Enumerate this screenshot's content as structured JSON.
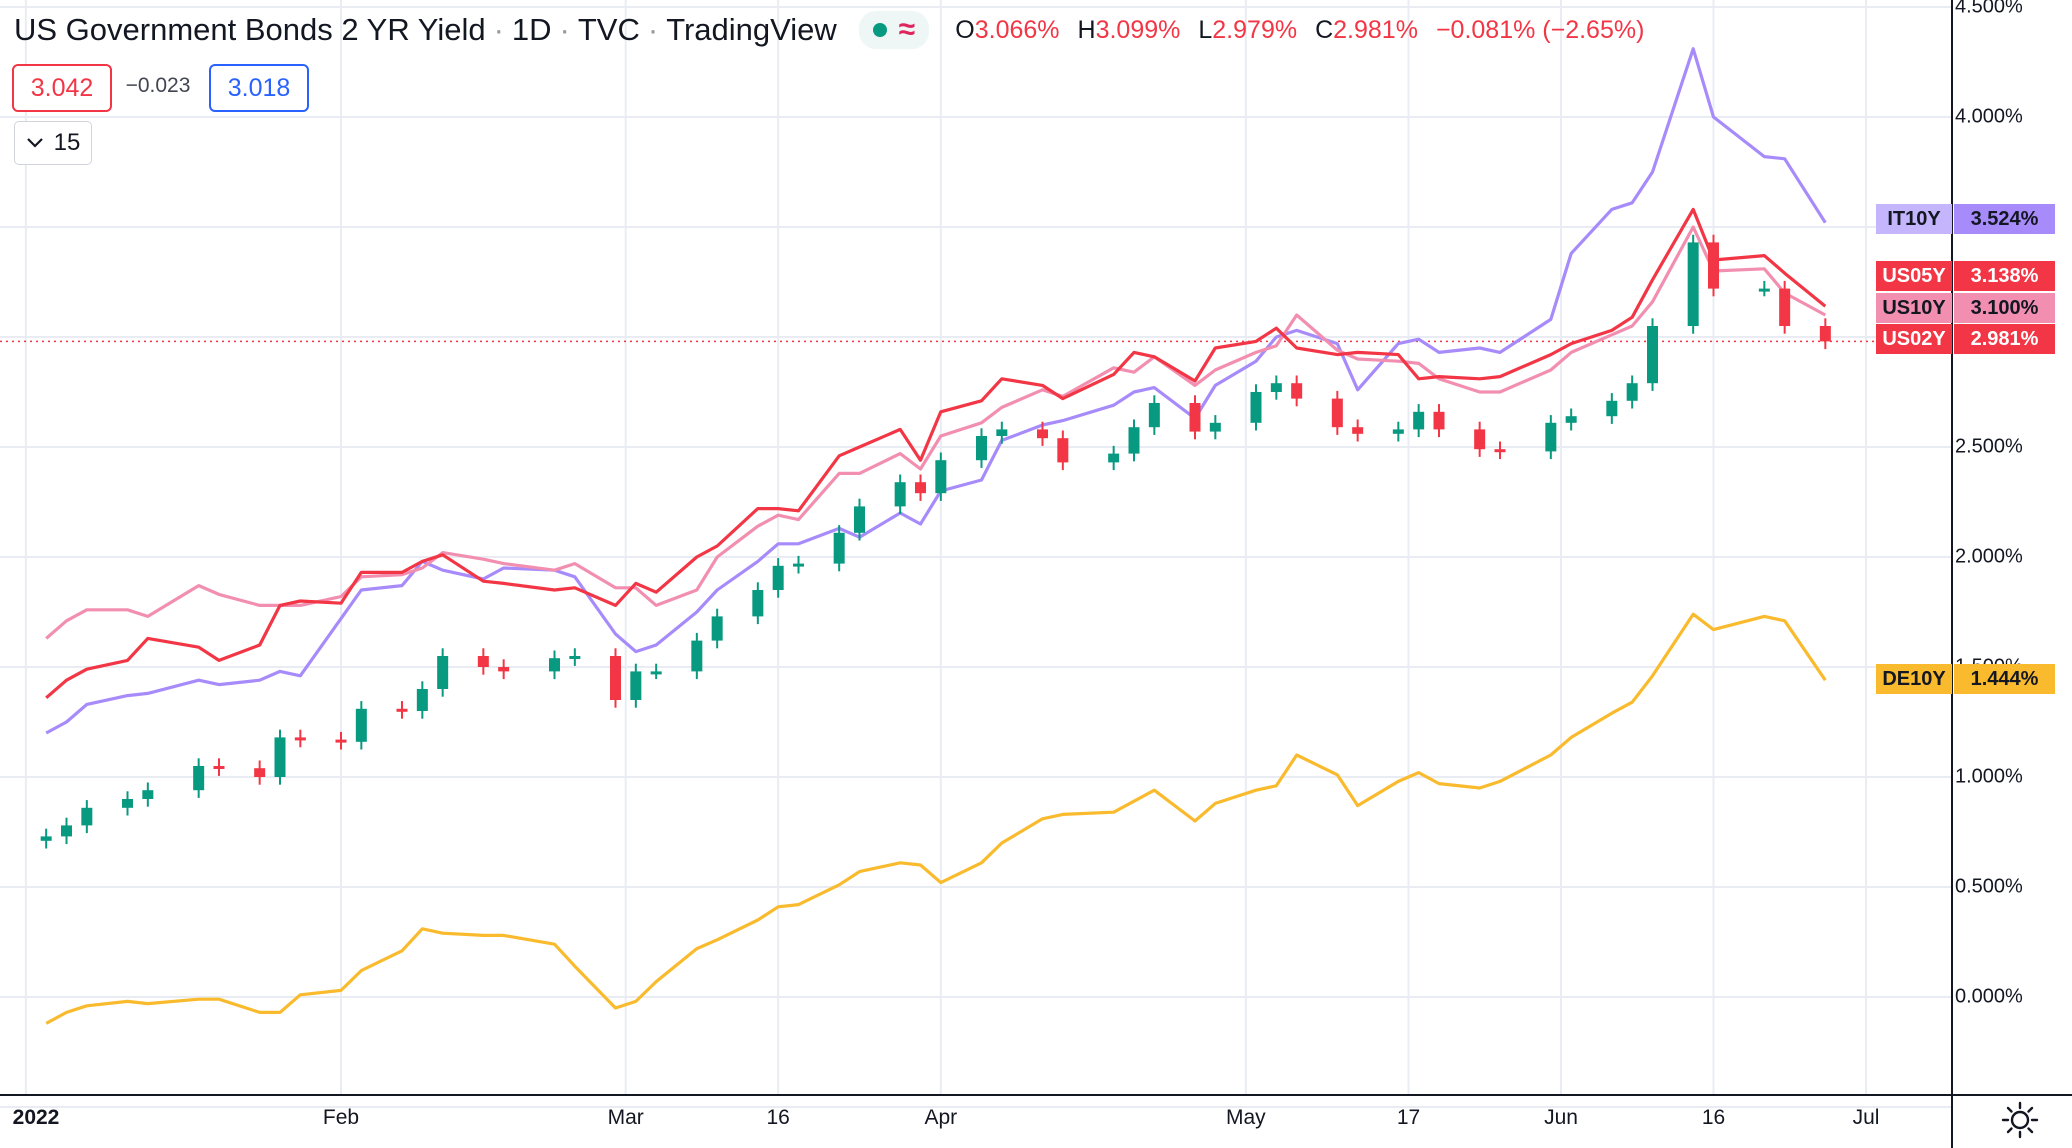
{
  "header": {
    "title": "US Government Bonds 2 YR Yield",
    "interval": "1D",
    "exchange": "TVC",
    "source": "TradingView",
    "open_label": "O",
    "open": "3.066%",
    "high_label": "H",
    "high": "3.099%",
    "low_label": "L",
    "low": "2.979%",
    "close_label": "C",
    "close": "2.981%",
    "change": "−0.081% (−2.65%)"
  },
  "quote": {
    "bid": "3.042",
    "spread": "−0.023",
    "ask": "3.018"
  },
  "volume_button": {
    "label": "15"
  },
  "colors": {
    "up": "#089981",
    "down": "#f23645",
    "US05Y": "#f23645",
    "US10Y": "#f28fb1",
    "IT10Y": "#a78bfa",
    "DE10Y": "#f9bb2d",
    "grid": "#e9edf3"
  },
  "axis": {
    "y_ticks": [
      "4.500%",
      "4.000%",
      "2.500%",
      "2.000%",
      "1.500%",
      "1.000%",
      "0.500%",
      "0.000%"
    ],
    "x_ticks": [
      "2022",
      "Feb",
      "Mar",
      "16",
      "Apr",
      "May",
      "17",
      "Jun",
      "16",
      "Jul"
    ]
  },
  "labels": [
    {
      "symbol": "IT10Y",
      "value": "3.524%"
    },
    {
      "symbol": "US05Y",
      "value": "3.138%"
    },
    {
      "symbol": "US10Y",
      "value": "3.100%"
    },
    {
      "symbol": "US02Y",
      "value": "2.981%"
    },
    {
      "symbol": "DE10Y",
      "value": "1.444%"
    }
  ],
  "chart_data": {
    "type": "line",
    "title": "US Government Bonds 2 YR Yield",
    "x": [
      "2022-01-03",
      "2022-01-05",
      "2022-01-07",
      "2022-01-11",
      "2022-01-13",
      "2022-01-18",
      "2022-01-20",
      "2022-01-24",
      "2022-01-26",
      "2022-01-28",
      "2022-02-01",
      "2022-02-03",
      "2022-02-07",
      "2022-02-09",
      "2022-02-11",
      "2022-02-15",
      "2022-02-17",
      "2022-02-22",
      "2022-02-24",
      "2022-02-28",
      "2022-03-02",
      "2022-03-04",
      "2022-03-08",
      "2022-03-10",
      "2022-03-14",
      "2022-03-16",
      "2022-03-18",
      "2022-03-22",
      "2022-03-24",
      "2022-03-28",
      "2022-03-30",
      "2022-04-01",
      "2022-04-05",
      "2022-04-07",
      "2022-04-11",
      "2022-04-13",
      "2022-04-18",
      "2022-04-20",
      "2022-04-22",
      "2022-04-26",
      "2022-04-28",
      "2022-05-02",
      "2022-05-04",
      "2022-05-06",
      "2022-05-10",
      "2022-05-12",
      "2022-05-16",
      "2022-05-18",
      "2022-05-20",
      "2022-05-24",
      "2022-05-26",
      "2022-05-31",
      "2022-06-02",
      "2022-06-06",
      "2022-06-08",
      "2022-06-10",
      "2022-06-14",
      "2022-06-16",
      "2022-06-21",
      "2022-06-23",
      "2022-06-27"
    ],
    "series": [
      {
        "name": "US02Y",
        "type": "candlestick",
        "values": [
          0.73,
          0.78,
          0.86,
          0.9,
          0.94,
          1.05,
          1.04,
          1.0,
          1.18,
          1.17,
          1.16,
          1.31,
          1.3,
          1.4,
          1.55,
          1.5,
          1.48,
          1.54,
          1.55,
          1.35,
          1.48,
          1.48,
          1.62,
          1.73,
          1.85,
          1.96,
          1.97,
          2.11,
          2.23,
          2.34,
          2.29,
          2.44,
          2.55,
          2.58,
          2.54,
          2.43,
          2.47,
          2.59,
          2.7,
          2.57,
          2.61,
          2.75,
          2.79,
          2.72,
          2.59,
          2.56,
          2.58,
          2.66,
          2.58,
          2.49,
          2.48,
          2.61,
          2.64,
          2.71,
          2.79,
          3.05,
          3.43,
          3.22,
          3.22,
          3.05,
          2.98
        ]
      },
      {
        "name": "US05Y",
        "values": [
          1.36,
          1.44,
          1.49,
          1.53,
          1.63,
          1.59,
          1.53,
          1.6,
          1.78,
          1.8,
          1.79,
          1.93,
          1.93,
          1.98,
          2.01,
          1.89,
          1.88,
          1.85,
          1.86,
          1.78,
          1.88,
          1.84,
          2.0,
          2.05,
          2.22,
          2.22,
          2.21,
          2.46,
          2.5,
          2.58,
          2.44,
          2.66,
          2.71,
          2.81,
          2.78,
          2.72,
          2.83,
          2.93,
          2.91,
          2.8,
          2.95,
          2.98,
          3.04,
          2.95,
          2.92,
          2.93,
          2.92,
          2.81,
          2.82,
          2.81,
          2.82,
          2.92,
          2.97,
          3.03,
          3.09,
          3.26,
          3.58,
          3.35,
          3.37,
          3.29,
          3.14
        ]
      },
      {
        "name": "US10Y",
        "values": [
          1.63,
          1.71,
          1.76,
          1.76,
          1.73,
          1.87,
          1.83,
          1.78,
          1.78,
          1.78,
          1.82,
          1.91,
          1.92,
          1.95,
          2.02,
          1.99,
          1.97,
          1.94,
          1.97,
          1.86,
          1.86,
          1.78,
          1.85,
          2.0,
          2.14,
          2.19,
          2.17,
          2.38,
          2.38,
          2.47,
          2.4,
          2.55,
          2.61,
          2.68,
          2.76,
          2.73,
          2.86,
          2.84,
          2.91,
          2.78,
          2.85,
          2.93,
          2.96,
          3.1,
          2.94,
          2.9,
          2.89,
          2.88,
          2.81,
          2.75,
          2.75,
          2.85,
          2.93,
          3.01,
          3.05,
          3.16,
          3.5,
          3.3,
          3.31,
          3.2,
          3.1
        ]
      },
      {
        "name": "IT10Y",
        "values": [
          1.2,
          1.25,
          1.33,
          1.37,
          1.38,
          1.44,
          1.42,
          1.44,
          1.48,
          1.46,
          1.72,
          1.85,
          1.87,
          1.98,
          1.94,
          1.9,
          1.95,
          1.94,
          1.91,
          1.65,
          1.57,
          1.6,
          1.75,
          1.85,
          1.98,
          2.06,
          2.06,
          2.13,
          2.09,
          2.2,
          2.15,
          2.3,
          2.35,
          2.53,
          2.6,
          2.62,
          2.69,
          2.75,
          2.77,
          2.63,
          2.78,
          2.89,
          3.0,
          3.03,
          2.97,
          2.76,
          2.97,
          2.99,
          2.93,
          2.95,
          2.93,
          3.08,
          3.38,
          3.58,
          3.61,
          3.75,
          4.31,
          4.0,
          3.82,
          3.81,
          3.52
        ]
      },
      {
        "name": "DE10Y",
        "values": [
          -0.12,
          -0.07,
          -0.04,
          -0.02,
          -0.03,
          -0.01,
          -0.01,
          -0.07,
          -0.07,
          0.01,
          0.03,
          0.12,
          0.21,
          0.31,
          0.29,
          0.28,
          0.28,
          0.24,
          0.14,
          -0.05,
          -0.02,
          0.07,
          0.22,
          0.26,
          0.35,
          0.41,
          0.42,
          0.51,
          0.57,
          0.61,
          0.6,
          0.52,
          0.61,
          0.7,
          0.81,
          0.83,
          0.84,
          0.89,
          0.94,
          0.8,
          0.88,
          0.94,
          0.96,
          1.1,
          1.01,
          0.87,
          0.98,
          1.02,
          0.97,
          0.95,
          0.98,
          1.1,
          1.18,
          1.29,
          1.34,
          1.46,
          1.74,
          1.67,
          1.73,
          1.71,
          1.44
        ]
      }
    ],
    "ylim": [
      -0.5,
      4.6
    ],
    "grid": true,
    "legend": "right"
  }
}
